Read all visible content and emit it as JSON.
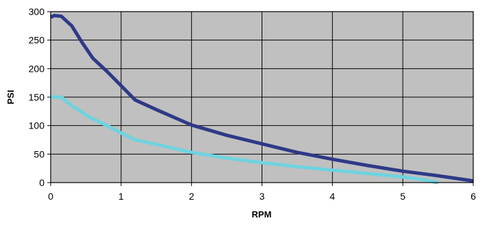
{
  "chart_data": {
    "type": "line",
    "xlabel": "RPM",
    "ylabel": "PSI",
    "xlim": [
      0,
      6
    ],
    "ylim": [
      0,
      300
    ],
    "x_ticks": [
      0,
      1,
      2,
      3,
      4,
      5,
      6
    ],
    "y_ticks": [
      0,
      50,
      100,
      150,
      200,
      250,
      300
    ],
    "grid": true,
    "plot_background": "#c0c0c0",
    "series": [
      {
        "color": "#2e3a87",
        "x": [
          0,
          0.05,
          0.15,
          0.3,
          0.45,
          0.6,
          0.8,
          1.0,
          1.2,
          1.5,
          2.0,
          2.5,
          3.0,
          3.5,
          4.0,
          4.5,
          5.0,
          5.5,
          6.0
        ],
        "y": [
          290,
          293,
          292,
          275,
          245,
          218,
          195,
          170,
          145,
          128,
          101,
          83,
          68,
          53,
          41,
          30,
          20,
          12,
          3
        ]
      },
      {
        "color": "#6fd3df",
        "x": [
          0,
          0.15,
          0.3,
          0.55,
          0.8,
          1.0,
          1.2,
          1.5,
          2.0,
          2.5,
          3.0,
          3.5,
          4.0,
          4.5,
          5.0,
          5.3,
          5.5
        ],
        "y": [
          150,
          150,
          135,
          115,
          100,
          87,
          75,
          67,
          53,
          43,
          35,
          28,
          22,
          16,
          10,
          5,
          0
        ]
      }
    ]
  }
}
